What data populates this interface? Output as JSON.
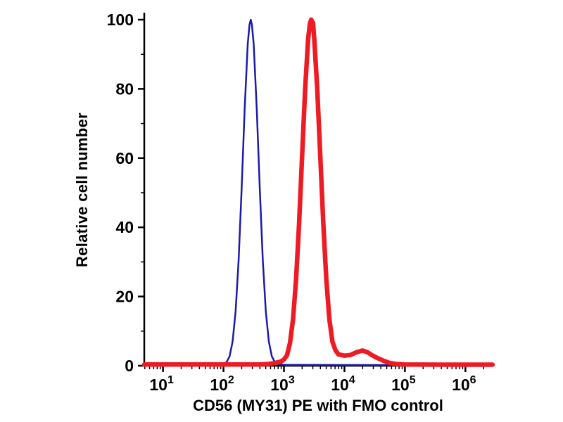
{
  "chart_data": {
    "type": "line",
    "subtype": "flow-cytometry-histogram",
    "title": "",
    "xlabel": "CD56 (MY31) PE with FMO control",
    "ylabel": "Relative cell number",
    "x_scale": "log10",
    "x_range_log": [
      0.69,
      6.45
    ],
    "ylim": [
      0,
      100
    ],
    "x_ticks_exponents": [
      1,
      2,
      3,
      4,
      5,
      6
    ],
    "x_tick_base": "10",
    "y_ticks": [
      0,
      20,
      40,
      60,
      80,
      100
    ],
    "y_minor_ticks": [
      10,
      30,
      50,
      70,
      90
    ],
    "grid": false,
    "legend": "none",
    "axis_color": "#000000",
    "series": [
      {
        "id": "fmo-control",
        "name": "FMO control",
        "color": "#1c1aa8",
        "width": 2.5,
        "peak_log10_x": 2.45,
        "peak_value": 100,
        "points": [
          [
            0.69,
            0.2
          ],
          [
            1.6,
            0.2
          ],
          [
            1.9,
            0.25
          ],
          [
            2.0,
            0.5
          ],
          [
            2.05,
            1
          ],
          [
            2.1,
            2.7
          ],
          [
            2.15,
            7
          ],
          [
            2.2,
            15.7
          ],
          [
            2.25,
            30.6
          ],
          [
            2.3,
            51.4
          ],
          [
            2.35,
            74.4
          ],
          [
            2.4,
            92.9
          ],
          [
            2.43,
            98.5
          ],
          [
            2.45,
            100
          ],
          [
            2.47,
            98.5
          ],
          [
            2.5,
            92.9
          ],
          [
            2.55,
            74.4
          ],
          [
            2.6,
            51.4
          ],
          [
            2.65,
            30.6
          ],
          [
            2.7,
            15.7
          ],
          [
            2.75,
            7
          ],
          [
            2.8,
            2.7
          ],
          [
            2.85,
            1
          ],
          [
            2.9,
            0.5
          ],
          [
            3.0,
            0.25
          ],
          [
            4.2,
            0.2
          ],
          [
            6.45,
            0.2
          ]
        ]
      },
      {
        "id": "cd56-pe",
        "name": "CD56 (MY31) PE",
        "color": "#ed1c24",
        "width": 6.5,
        "peak_log10_x": 3.45,
        "peak_value": 100,
        "points": [
          [
            0.69,
            0.35
          ],
          [
            1.5,
            0.35
          ],
          [
            2.6,
            0.35
          ],
          [
            2.75,
            0.5
          ],
          [
            2.85,
            0.8
          ],
          [
            2.95,
            1.2
          ],
          [
            3.0,
            1.8
          ],
          [
            3.05,
            3
          ],
          [
            3.1,
            6.6
          ],
          [
            3.15,
            13.5
          ],
          [
            3.2,
            24.9
          ],
          [
            3.25,
            41.1
          ],
          [
            3.3,
            60.7
          ],
          [
            3.35,
            80
          ],
          [
            3.4,
            94.6
          ],
          [
            3.43,
            99
          ],
          [
            3.45,
            100
          ],
          [
            3.48,
            99
          ],
          [
            3.5,
            94.6
          ],
          [
            3.55,
            80
          ],
          [
            3.6,
            60.7
          ],
          [
            3.65,
            41.1
          ],
          [
            3.7,
            24.9
          ],
          [
            3.75,
            13.5
          ],
          [
            3.8,
            7
          ],
          [
            3.85,
            4.5
          ],
          [
            3.9,
            3.3
          ],
          [
            4.0,
            2.9
          ],
          [
            4.1,
            3.1
          ],
          [
            4.2,
            3.9
          ],
          [
            4.3,
            4.4
          ],
          [
            4.38,
            3.9
          ],
          [
            4.45,
            3.1
          ],
          [
            4.55,
            2.2
          ],
          [
            4.65,
            1.4
          ],
          [
            4.75,
            0.8
          ],
          [
            4.85,
            0.5
          ],
          [
            5.0,
            0.35
          ],
          [
            5.6,
            0.3
          ],
          [
            6.45,
            0.3
          ]
        ]
      }
    ]
  }
}
